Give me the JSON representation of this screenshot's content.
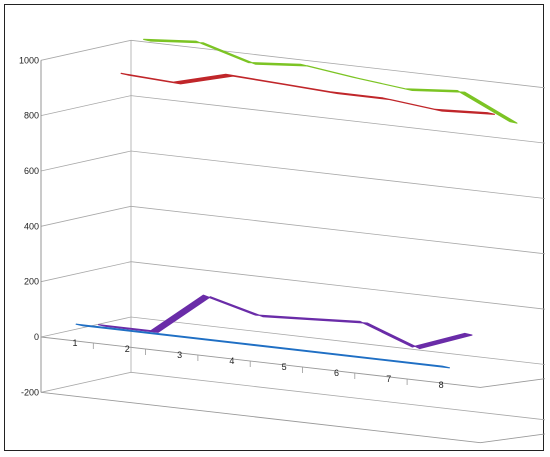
{
  "chart_data": {
    "type": "line",
    "style": "3d-ribbon",
    "title": "",
    "xlabel": "",
    "ylabel": "",
    "ylim": [
      -200,
      1000
    ],
    "yticks": [
      -200,
      0,
      200,
      400,
      600,
      800,
      1000
    ],
    "categories": [
      "1",
      "2",
      "3",
      "4",
      "5",
      "6",
      "7",
      "8"
    ],
    "grid": true,
    "legend": "none",
    "series": [
      {
        "color": "#1f6fc4",
        "values": [
          50,
          50,
          50,
          50,
          50,
          50,
          50,
          50
        ]
      },
      {
        "color": "#6a2ca8",
        "values": [
          30,
          30,
          180,
          130,
          140,
          150,
          80,
          150
        ]
      },
      {
        "color": "#c0262a",
        "values": [
          920,
          910,
          960,
          950,
          940,
          940,
          920,
          930
        ]
      },
      {
        "color": "#7cc424",
        "values": [
          1025,
          1040,
          985,
          1000,
          975,
          955,
          970,
          880
        ]
      }
    ]
  }
}
